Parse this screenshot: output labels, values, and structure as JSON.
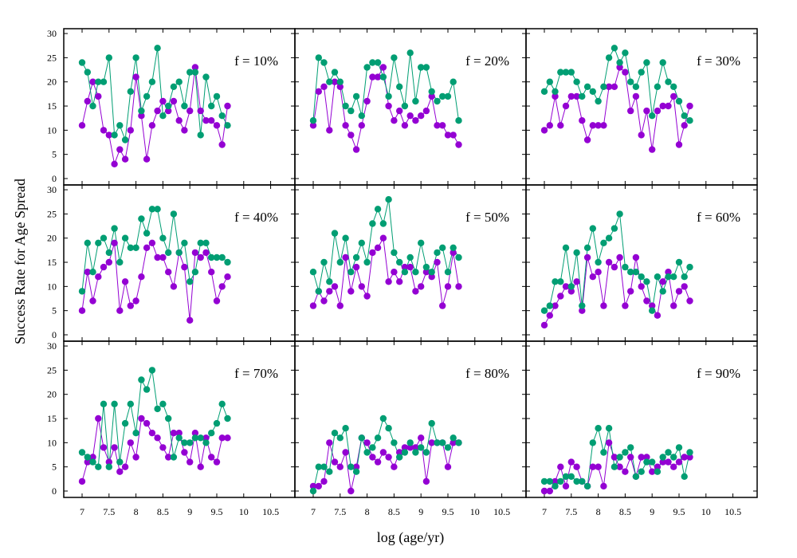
{
  "figure": {
    "xlabel": "log (age/yr)",
    "ylabel": "Success Rate for Age Spread"
  },
  "colors": {
    "series_a": "#9400D3",
    "series_b": "#009E73"
  },
  "x_ticks": [
    "7",
    "7.5",
    "8",
    "8.5",
    "9",
    "9.5",
    "10",
    "10.5"
  ],
  "y_ticks": [
    "0",
    "5",
    "10",
    "15",
    "20",
    "25",
    "30"
  ],
  "chart_data": [
    {
      "type": "line",
      "title": "f = 10%",
      "xlim": [
        6.8,
        10.5
      ],
      "ylim": [
        0,
        31
      ],
      "grid": false,
      "x": [
        7.0,
        7.1,
        7.2,
        7.3,
        7.4,
        7.5,
        7.6,
        7.7,
        7.8,
        7.9,
        8.0,
        8.1,
        8.2,
        8.3,
        8.4,
        8.5,
        8.6,
        8.7,
        8.8,
        8.9,
        9.0,
        9.1,
        9.2,
        9.3,
        9.4,
        9.5,
        9.6,
        9.7
      ],
      "series": [
        {
          "color": "#9400D3",
          "values": [
            11,
            16,
            20,
            17,
            10,
            9,
            3,
            6,
            4,
            10,
            21,
            13,
            4,
            11,
            14,
            16,
            14,
            16,
            12,
            10,
            14,
            23,
            14,
            12,
            12,
            11,
            7,
            15
          ]
        },
        {
          "color": "#009E73",
          "values": [
            24,
            22,
            15,
            20,
            20,
            25,
            9,
            11,
            8,
            18,
            25,
            14,
            17,
            20,
            27,
            13,
            15,
            19,
            20,
            15,
            22,
            22,
            9,
            21,
            15,
            17,
            13,
            11
          ]
        }
      ]
    },
    {
      "type": "line",
      "title": "f = 20%",
      "xlim": [
        6.8,
        10.5
      ],
      "ylim": [
        0,
        31
      ],
      "grid": false,
      "x": [
        7.0,
        7.1,
        7.2,
        7.3,
        7.4,
        7.5,
        7.6,
        7.7,
        7.8,
        7.9,
        8.0,
        8.1,
        8.2,
        8.3,
        8.4,
        8.5,
        8.6,
        8.7,
        8.8,
        8.9,
        9.0,
        9.1,
        9.2,
        9.3,
        9.4,
        9.5,
        9.6,
        9.7
      ],
      "series": [
        {
          "color": "#9400D3",
          "values": [
            11,
            18,
            19,
            10,
            20,
            19,
            11,
            9,
            6,
            11,
            16,
            21,
            21,
            23,
            15,
            12,
            14,
            11,
            13,
            12,
            13,
            14,
            17,
            11,
            11,
            9,
            9,
            7
          ]
        },
        {
          "color": "#009E73",
          "values": [
            12,
            25,
            24,
            20,
            22,
            20,
            15,
            14,
            17,
            13,
            23,
            24,
            24,
            21,
            17,
            25,
            19,
            15,
            26,
            16,
            23,
            23,
            18,
            16,
            17,
            17,
            20,
            12
          ]
        }
      ]
    },
    {
      "type": "line",
      "title": "f = 30%",
      "xlim": [
        6.8,
        10.5
      ],
      "ylim": [
        0,
        31
      ],
      "grid": false,
      "x": [
        7.0,
        7.1,
        7.2,
        7.3,
        7.4,
        7.5,
        7.6,
        7.7,
        7.8,
        7.9,
        8.0,
        8.1,
        8.2,
        8.3,
        8.4,
        8.5,
        8.6,
        8.7,
        8.8,
        8.9,
        9.0,
        9.1,
        9.2,
        9.3,
        9.4,
        9.5,
        9.6,
        9.7
      ],
      "series": [
        {
          "color": "#9400D3",
          "values": [
            10,
            11,
            17,
            11,
            15,
            17,
            17,
            12,
            8,
            11,
            11,
            11,
            19,
            19,
            23,
            22,
            14,
            17,
            9,
            14,
            6,
            14,
            15,
            15,
            17,
            7,
            11,
            15
          ]
        },
        {
          "color": "#009E73",
          "values": [
            18,
            20,
            18,
            22,
            22,
            22,
            20,
            17,
            19,
            18,
            16,
            19,
            25,
            27,
            24,
            26,
            20,
            19,
            22,
            24,
            13,
            19,
            24,
            20,
            19,
            16,
            13,
            12
          ]
        }
      ]
    },
    {
      "type": "line",
      "title": "f = 40%",
      "xlim": [
        6.8,
        10.5
      ],
      "ylim": [
        0,
        31
      ],
      "grid": false,
      "x": [
        7.0,
        7.1,
        7.2,
        7.3,
        7.4,
        7.5,
        7.6,
        7.7,
        7.8,
        7.9,
        8.0,
        8.1,
        8.2,
        8.3,
        8.4,
        8.5,
        8.6,
        8.7,
        8.8,
        8.9,
        9.0,
        9.1,
        9.2,
        9.3,
        9.4,
        9.5,
        9.6,
        9.7
      ],
      "series": [
        {
          "color": "#9400D3",
          "values": [
            5,
            13,
            7,
            12,
            14,
            15,
            19,
            5,
            11,
            6,
            7,
            12,
            18,
            19,
            16,
            16,
            13,
            10,
            17,
            14,
            3,
            17,
            16,
            17,
            13,
            7,
            10,
            12
          ]
        },
        {
          "color": "#009E73",
          "values": [
            9,
            19,
            13,
            19,
            20,
            17,
            22,
            15,
            20,
            18,
            18,
            24,
            21,
            26,
            26,
            20,
            17,
            25,
            17,
            19,
            11,
            13,
            19,
            19,
            16,
            16,
            16,
            15
          ]
        }
      ]
    },
    {
      "type": "line",
      "title": "f = 50%",
      "xlim": [
        6.8,
        10.5
      ],
      "ylim": [
        0,
        31
      ],
      "grid": false,
      "x": [
        7.0,
        7.1,
        7.2,
        7.3,
        7.4,
        7.5,
        7.6,
        7.7,
        7.8,
        7.9,
        8.0,
        8.1,
        8.2,
        8.3,
        8.4,
        8.5,
        8.6,
        8.7,
        8.8,
        8.9,
        9.0,
        9.1,
        9.2,
        9.3,
        9.4,
        9.5,
        9.6,
        9.7
      ],
      "series": [
        {
          "color": "#9400D3",
          "values": [
            6,
            9,
            7,
            9,
            10,
            6,
            16,
            9,
            14,
            10,
            8,
            17,
            18,
            20,
            11,
            13,
            11,
            14,
            14,
            9,
            10,
            13,
            12,
            15,
            6,
            10,
            17,
            10
          ]
        },
        {
          "color": "#009E73",
          "values": [
            13,
            9,
            15,
            11,
            21,
            15,
            20,
            13,
            16,
            19,
            15,
            23,
            26,
            23,
            28,
            17,
            15,
            13,
            16,
            13,
            19,
            14,
            13,
            17,
            18,
            13,
            18,
            16
          ]
        }
      ]
    },
    {
      "type": "line",
      "title": "f = 60%",
      "xlim": [
        6.8,
        10.5
      ],
      "ylim": [
        0,
        31
      ],
      "grid": false,
      "x": [
        7.0,
        7.1,
        7.2,
        7.3,
        7.4,
        7.5,
        7.6,
        7.7,
        7.8,
        7.9,
        8.0,
        8.1,
        8.2,
        8.3,
        8.4,
        8.5,
        8.6,
        8.7,
        8.8,
        8.9,
        9.0,
        9.1,
        9.2,
        9.3,
        9.4,
        9.5,
        9.6,
        9.7
      ],
      "series": [
        {
          "color": "#9400D3",
          "values": [
            2,
            4,
            6,
            8,
            10,
            9,
            11,
            5,
            16,
            12,
            13,
            6,
            15,
            14,
            16,
            6,
            9,
            16,
            10,
            7,
            6,
            4,
            11,
            13,
            6,
            9,
            10,
            7
          ]
        },
        {
          "color": "#009E73",
          "values": [
            5,
            6,
            11,
            11,
            18,
            10,
            17,
            6,
            18,
            22,
            15,
            19,
            20,
            22,
            25,
            14,
            13,
            13,
            12,
            11,
            5,
            12,
            9,
            12,
            12,
            15,
            12,
            14
          ]
        }
      ]
    },
    {
      "type": "line",
      "title": "f = 70%",
      "xlim": [
        6.8,
        10.5
      ],
      "ylim": [
        0,
        31
      ],
      "grid": false,
      "x": [
        7.0,
        7.1,
        7.2,
        7.3,
        7.4,
        7.5,
        7.6,
        7.7,
        7.8,
        7.9,
        8.0,
        8.1,
        8.2,
        8.3,
        8.4,
        8.5,
        8.6,
        8.7,
        8.8,
        8.9,
        9.0,
        9.1,
        9.2,
        9.3,
        9.4,
        9.5,
        9.6,
        9.7
      ],
      "series": [
        {
          "color": "#9400D3",
          "values": [
            2,
            6,
            7,
            15,
            9,
            6,
            9,
            4,
            5,
            10,
            7,
            15,
            14,
            12,
            11,
            9,
            7,
            12,
            12,
            8,
            6,
            12,
            5,
            11,
            7,
            6,
            11,
            11
          ]
        },
        {
          "color": "#009E73",
          "values": [
            8,
            7,
            6,
            5,
            18,
            5,
            18,
            6,
            14,
            18,
            12,
            23,
            21,
            25,
            17,
            18,
            15,
            7,
            11,
            10,
            10,
            11,
            11,
            10,
            12,
            14,
            18,
            15
          ]
        }
      ]
    },
    {
      "type": "line",
      "title": "f = 80%",
      "xlim": [
        6.8,
        10.5
      ],
      "ylim": [
        0,
        31
      ],
      "grid": false,
      "x": [
        7.0,
        7.1,
        7.2,
        7.3,
        7.4,
        7.5,
        7.6,
        7.7,
        7.8,
        7.9,
        8.0,
        8.1,
        8.2,
        8.3,
        8.4,
        8.5,
        8.6,
        8.7,
        8.8,
        8.9,
        9.0,
        9.1,
        9.2,
        9.3,
        9.4,
        9.5,
        9.6,
        9.7
      ],
      "series": [
        {
          "color": "#9400D3",
          "values": [
            1,
            1,
            2,
            10,
            6,
            5,
            8,
            0,
            5,
            11,
            10,
            7,
            6,
            8,
            7,
            5,
            8,
            9,
            9,
            9,
            11,
            2,
            10,
            10,
            10,
            5,
            10,
            10
          ]
        },
        {
          "color": "#009E73",
          "values": [
            0,
            5,
            5,
            4,
            12,
            11,
            13,
            5,
            4,
            11,
            8,
            9,
            11,
            15,
            13,
            10,
            7,
            8,
            10,
            8,
            9,
            8,
            14,
            10,
            10,
            9,
            11,
            10
          ]
        }
      ]
    },
    {
      "type": "line",
      "title": "f = 90%",
      "xlim": [
        6.8,
        10.5
      ],
      "ylim": [
        0,
        31
      ],
      "grid": false,
      "x": [
        7.0,
        7.1,
        7.2,
        7.3,
        7.4,
        7.5,
        7.6,
        7.7,
        7.8,
        7.9,
        8.0,
        8.1,
        8.2,
        8.3,
        8.4,
        8.5,
        8.6,
        8.7,
        8.8,
        8.9,
        9.0,
        9.1,
        9.2,
        9.3,
        9.4,
        9.5,
        9.6,
        9.7
      ],
      "series": [
        {
          "color": "#9400D3",
          "values": [
            0,
            0,
            2,
            5,
            1,
            6,
            5,
            2,
            1,
            5,
            5,
            1,
            10,
            7,
            5,
            4,
            7,
            3,
            7,
            7,
            4,
            5,
            6,
            6,
            5,
            6,
            7,
            7
          ]
        },
        {
          "color": "#009E73",
          "values": [
            2,
            2,
            1,
            2,
            3,
            3,
            2,
            2,
            1,
            10,
            13,
            8,
            13,
            5,
            7,
            8,
            9,
            3,
            4,
            6,
            6,
            4,
            7,
            8,
            7,
            9,
            3,
            8
          ]
        }
      ]
    }
  ]
}
